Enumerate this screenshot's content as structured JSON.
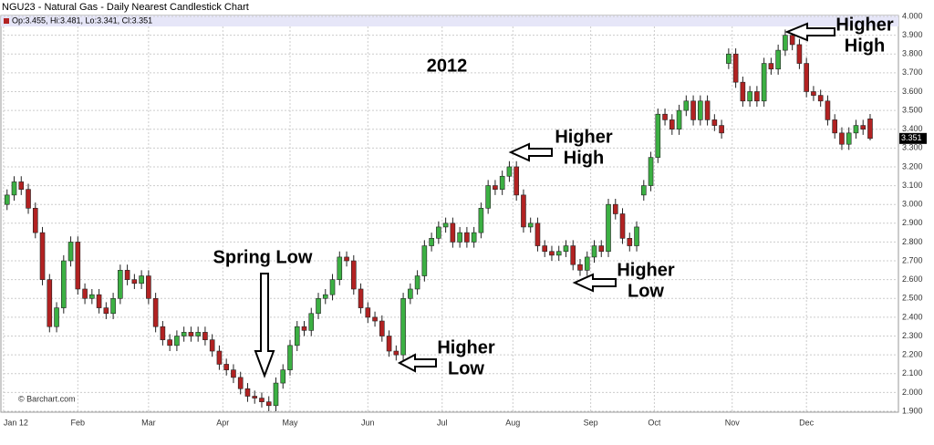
{
  "chart_data": {
    "type": "candlestick",
    "title": "NGU23 - Natural Gas - Daily Nearest Candlestick Chart",
    "info_label": "Op:3.455, Hi:3.481, Lo:3.341, Cl:3.351",
    "watermark": "© Barchart.com",
    "annotations": [
      [
        "2012"
      ],
      [
        "Spring Low"
      ],
      [
        "Higher",
        "Low"
      ],
      [
        "Higher",
        "High"
      ],
      [
        "Higher",
        "Low"
      ],
      [
        "Higher",
        "High"
      ]
    ],
    "up_color": "#3cb043",
    "down_color": "#b22222",
    "grid": true,
    "xlim": [
      -2,
      252
    ],
    "xticks": [
      {
        "value": -1,
        "label": "Jan 12"
      },
      {
        "value": 20,
        "label": "Feb"
      },
      {
        "value": 40,
        "label": "Mar"
      },
      {
        "value": 61,
        "label": "Apr"
      },
      {
        "value": 80,
        "label": "May"
      },
      {
        "value": 102,
        "label": "Jun"
      },
      {
        "value": 123,
        "label": "Jul"
      },
      {
        "value": 143,
        "label": "Aug"
      },
      {
        "value": 165,
        "label": "Sep"
      },
      {
        "value": 183,
        "label": "Oct"
      },
      {
        "value": 205,
        "label": "Nov"
      },
      {
        "value": 226,
        "label": "Dec"
      }
    ],
    "ylim": [
      1.9,
      4.0
    ],
    "yticks": [
      {
        "value": 1.9,
        "label": "1.900"
      },
      {
        "value": 2.0,
        "label": "2.000"
      },
      {
        "value": 2.1,
        "label": "2.100"
      },
      {
        "value": 2.2,
        "label": "2.200"
      },
      {
        "value": 2.3,
        "label": "2.300"
      },
      {
        "value": 2.4,
        "label": "2.400"
      },
      {
        "value": 2.5,
        "label": "2.500"
      },
      {
        "value": 2.6,
        "label": "2.600"
      },
      {
        "value": 2.7,
        "label": "2.700"
      },
      {
        "value": 2.8,
        "label": "2.800"
      },
      {
        "value": 2.9,
        "label": "2.900"
      },
      {
        "value": 3.0,
        "label": "3.000"
      },
      {
        "value": 3.1,
        "label": "3.100"
      },
      {
        "value": 3.2,
        "label": "3.200"
      },
      {
        "value": 3.3,
        "label": "3.300"
      },
      {
        "value": 3.4,
        "label": "3.400"
      },
      {
        "value": 3.5,
        "label": "3.500"
      },
      {
        "value": 3.6,
        "label": "3.600"
      },
      {
        "value": 3.7,
        "label": "3.700"
      },
      {
        "value": 3.8,
        "label": "3.800"
      },
      {
        "value": 3.9,
        "label": "3.900"
      },
      {
        "value": 4.0,
        "label": "4.000"
      }
    ],
    "x": [
      0,
      2,
      4,
      6,
      8,
      10,
      12,
      14,
      16,
      18,
      20,
      22,
      24,
      26,
      28,
      30,
      32,
      34,
      36,
      38,
      40,
      42,
      44,
      46,
      48,
      50,
      52,
      54,
      56,
      58,
      60,
      62,
      64,
      66,
      68,
      70,
      72,
      74,
      76,
      78,
      80,
      82,
      84,
      86,
      88,
      90,
      92,
      94,
      96,
      98,
      100,
      102,
      104,
      106,
      108,
      110,
      112,
      114,
      116,
      118,
      120,
      122,
      124,
      126,
      128,
      130,
      132,
      134,
      136,
      138,
      140,
      142,
      144,
      146,
      148,
      150,
      152,
      154,
      156,
      158,
      160,
      162,
      164,
      166,
      168,
      170,
      172,
      174,
      176,
      178,
      180,
      182,
      184,
      186,
      188,
      190,
      192,
      194,
      196,
      198,
      200,
      202,
      204,
      206,
      208,
      210,
      212,
      214,
      216,
      218,
      220,
      222,
      224,
      226,
      228,
      230,
      232,
      234,
      236,
      238,
      240,
      242,
      244
    ],
    "open": [
      3.0,
      3.05,
      3.12,
      3.08,
      2.98,
      2.85,
      2.6,
      2.35,
      2.45,
      2.7,
      2.8,
      2.55,
      2.5,
      2.52,
      2.45,
      2.42,
      2.5,
      2.65,
      2.6,
      2.58,
      2.62,
      2.5,
      2.35,
      2.28,
      2.25,
      2.3,
      2.32,
      2.3,
      2.32,
      2.28,
      2.22,
      2.15,
      2.12,
      2.08,
      2.02,
      1.98,
      1.97,
      1.95,
      1.93,
      2.05,
      2.12,
      2.25,
      2.35,
      2.33,
      2.42,
      2.5,
      2.52,
      2.6,
      2.72,
      2.7,
      2.55,
      2.45,
      2.4,
      2.38,
      2.3,
      2.22,
      2.2,
      2.5,
      2.55,
      2.62,
      2.78,
      2.82,
      2.88,
      2.9,
      2.8,
      2.85,
      2.8,
      2.85,
      2.98,
      3.1,
      3.08,
      3.15,
      3.2,
      3.05,
      2.88,
      2.9,
      2.78,
      2.75,
      2.73,
      2.75,
      2.78,
      2.68,
      2.65,
      2.72,
      2.78,
      2.75,
      3.0,
      2.95,
      2.82,
      2.78,
      3.05,
      3.1,
      3.25,
      3.48,
      3.45,
      3.4,
      3.5,
      3.55,
      3.45,
      3.55,
      3.45,
      3.42,
      3.75,
      3.8,
      3.65,
      3.55,
      3.6,
      3.55,
      3.75,
      3.72,
      3.82,
      3.9,
      3.85,
      3.75,
      3.6,
      3.58,
      3.55,
      3.45,
      3.38,
      3.32,
      3.38,
      3.42,
      3.455
    ],
    "high": [
      3.08,
      3.15,
      3.15,
      3.11,
      3.01,
      2.88,
      2.63,
      2.48,
      2.73,
      2.83,
      2.83,
      2.58,
      2.55,
      2.55,
      2.48,
      2.53,
      2.68,
      2.68,
      2.63,
      2.65,
      2.65,
      2.53,
      2.38,
      2.31,
      2.33,
      2.35,
      2.35,
      2.35,
      2.35,
      2.31,
      2.25,
      2.18,
      2.15,
      2.11,
      2.05,
      2.01,
      2.0,
      1.98,
      2.08,
      2.15,
      2.28,
      2.38,
      2.38,
      2.45,
      2.53,
      2.55,
      2.63,
      2.75,
      2.75,
      2.73,
      2.58,
      2.48,
      2.43,
      2.41,
      2.33,
      2.25,
      2.53,
      2.58,
      2.65,
      2.81,
      2.85,
      2.91,
      2.93,
      2.93,
      2.88,
      2.88,
      2.88,
      3.01,
      3.13,
      3.13,
      3.18,
      3.23,
      3.23,
      3.08,
      2.93,
      2.93,
      2.81,
      2.78,
      2.78,
      2.81,
      2.81,
      2.71,
      2.75,
      2.81,
      2.81,
      3.03,
      3.03,
      2.98,
      2.85,
      2.91,
      3.13,
      3.28,
      3.51,
      3.51,
      3.48,
      3.53,
      3.58,
      3.58,
      3.58,
      3.58,
      3.48,
      3.45,
      3.83,
      3.83,
      3.68,
      3.63,
      3.63,
      3.78,
      3.78,
      3.85,
      3.93,
      3.93,
      3.88,
      3.78,
      3.63,
      3.61,
      3.58,
      3.48,
      3.41,
      3.41,
      3.45,
      3.45,
      3.481
    ],
    "low": [
      2.97,
      3.02,
      3.05,
      2.95,
      2.82,
      2.57,
      2.32,
      2.32,
      2.42,
      2.67,
      2.52,
      2.47,
      2.47,
      2.42,
      2.39,
      2.39,
      2.47,
      2.57,
      2.55,
      2.55,
      2.47,
      2.32,
      2.25,
      2.22,
      2.22,
      2.27,
      2.27,
      2.27,
      2.25,
      2.19,
      2.12,
      2.09,
      2.05,
      1.99,
      1.95,
      1.94,
      1.92,
      1.9,
      1.9,
      2.02,
      2.09,
      2.22,
      2.3,
      2.3,
      2.39,
      2.47,
      2.49,
      2.57,
      2.67,
      2.52,
      2.42,
      2.37,
      2.35,
      2.27,
      2.19,
      2.17,
      2.17,
      2.47,
      2.52,
      2.59,
      2.75,
      2.79,
      2.85,
      2.77,
      2.77,
      2.77,
      2.77,
      2.82,
      2.95,
      3.05,
      3.05,
      3.12,
      3.02,
      2.85,
      2.85,
      2.75,
      2.72,
      2.7,
      2.7,
      2.72,
      2.65,
      2.62,
      2.62,
      2.69,
      2.72,
      2.72,
      2.92,
      2.79,
      2.75,
      2.75,
      3.02,
      3.07,
      3.22,
      3.42,
      3.37,
      3.37,
      3.47,
      3.42,
      3.42,
      3.42,
      3.39,
      3.35,
      3.72,
      3.62,
      3.52,
      3.52,
      3.52,
      3.52,
      3.69,
      3.69,
      3.79,
      3.82,
      3.72,
      3.57,
      3.55,
      3.52,
      3.42,
      3.35,
      3.29,
      3.29,
      3.35,
      3.37,
      3.341
    ],
    "close": [
      3.05,
      3.12,
      3.08,
      2.98,
      2.85,
      2.6,
      2.35,
      2.45,
      2.7,
      2.8,
      2.55,
      2.5,
      2.52,
      2.45,
      2.42,
      2.5,
      2.65,
      2.6,
      2.58,
      2.62,
      2.5,
      2.35,
      2.28,
      2.25,
      2.3,
      2.32,
      2.3,
      2.32,
      2.28,
      2.22,
      2.15,
      2.12,
      2.08,
      2.02,
      1.98,
      1.97,
      1.95,
      1.93,
      2.05,
      2.12,
      2.25,
      2.35,
      2.33,
      2.42,
      2.5,
      2.52,
      2.6,
      2.72,
      2.7,
      2.55,
      2.45,
      2.4,
      2.38,
      2.3,
      2.22,
      2.2,
      2.5,
      2.55,
      2.62,
      2.78,
      2.82,
      2.88,
      2.9,
      2.8,
      2.85,
      2.8,
      2.85,
      2.98,
      3.1,
      3.08,
      3.15,
      3.2,
      3.05,
      2.88,
      2.9,
      2.78,
      2.75,
      2.73,
      2.75,
      2.78,
      2.68,
      2.65,
      2.72,
      2.78,
      2.75,
      3.0,
      2.95,
      2.82,
      2.78,
      2.88,
      3.1,
      3.25,
      3.48,
      3.45,
      3.4,
      3.5,
      3.55,
      3.45,
      3.55,
      3.45,
      3.42,
      3.38,
      3.8,
      3.65,
      3.55,
      3.6,
      3.55,
      3.75,
      3.72,
      3.82,
      3.9,
      3.85,
      3.75,
      3.6,
      3.58,
      3.55,
      3.45,
      3.38,
      3.32,
      3.38,
      3.42,
      3.4,
      3.351
    ]
  }
}
